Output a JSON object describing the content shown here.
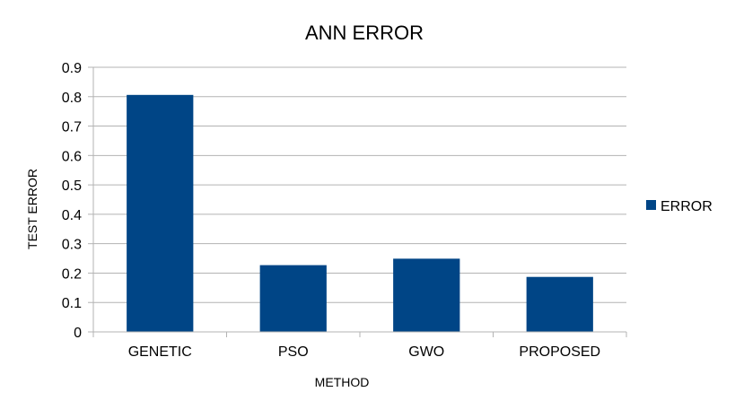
{
  "chart_data": {
    "type": "bar",
    "title": "ANN ERROR",
    "xlabel": "METHOD",
    "ylabel": "TEST ERROR",
    "categories": [
      "GENETIC",
      "PSO",
      "GWO",
      "PROPOSED"
    ],
    "series": [
      {
        "name": "ERROR",
        "values": [
          0.806,
          0.227,
          0.249,
          0.187
        ],
        "color": "#004586"
      }
    ],
    "ylim": [
      0,
      0.9
    ],
    "yticks": [
      "0",
      "0.1",
      "0.2",
      "0.3",
      "0.4",
      "0.5",
      "0.6",
      "0.7",
      "0.8",
      "0.9"
    ],
    "grid": true,
    "legend_position": "right"
  }
}
